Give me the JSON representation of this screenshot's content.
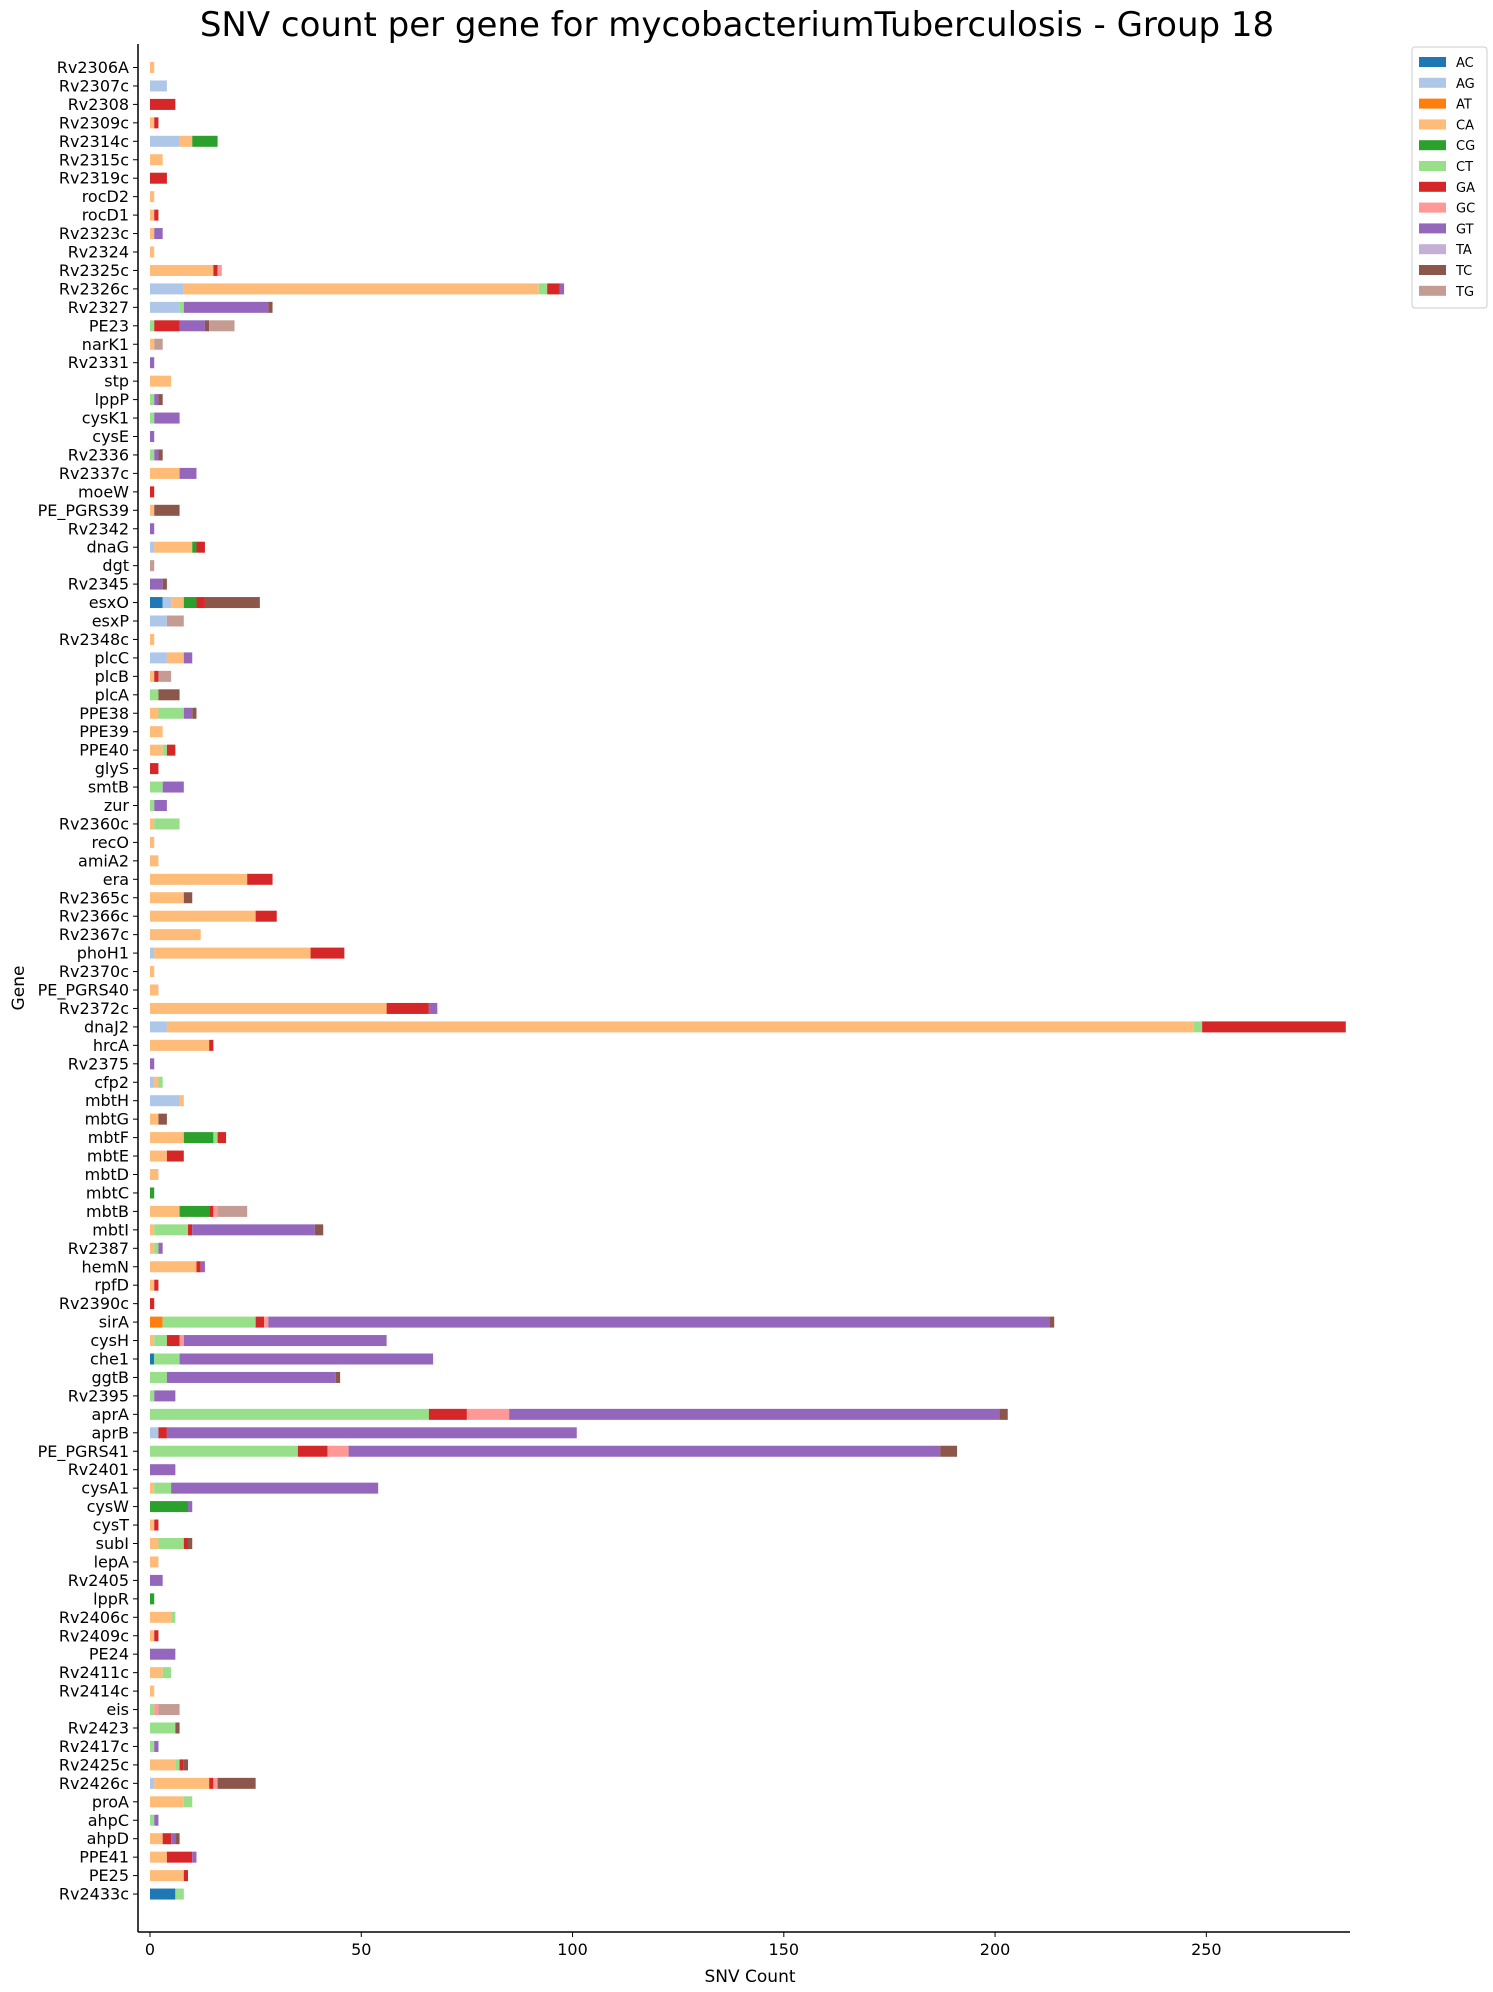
{
  "chart_data": {
    "type": "bar",
    "orientation": "horizontal",
    "stacked": true,
    "title": "SNV count per gene for mycobacteriumTuberculosis - Group 18",
    "xlabel": "SNV Count",
    "ylabel": "Gene",
    "xlim": [
      0,
      284
    ],
    "xticks": [
      0,
      50,
      100,
      150,
      200,
      250
    ],
    "grid": false,
    "legend_position": "top-right, outside plot",
    "categories": [
      "Rv2306A",
      "Rv2307c",
      "Rv2308",
      "Rv2309c",
      "Rv2314c",
      "Rv2315c",
      "Rv2319c",
      "rocD2",
      "rocD1",
      "Rv2323c",
      "Rv2324",
      "Rv2325c",
      "Rv2326c",
      "Rv2327",
      "PE23",
      "narK1",
      "Rv2331",
      "stp",
      "lppP",
      "cysK1",
      "cysE",
      "Rv2336",
      "Rv2337c",
      "moeW",
      "PE_PGRS39",
      "Rv2342",
      "dnaG",
      "dgt",
      "Rv2345",
      "esxO",
      "esxP",
      "Rv2348c",
      "plcC",
      "plcB",
      "plcA",
      "PPE38",
      "PPE39",
      "PPE40",
      "glyS",
      "smtB",
      "zur",
      "Rv2360c",
      "recO",
      "amiA2",
      "era",
      "Rv2365c",
      "Rv2366c",
      "Rv2367c",
      "phoH1",
      "Rv2370c",
      "PE_PGRS40",
      "Rv2372c",
      "dnaJ2",
      "hrcA",
      "Rv2375",
      "cfp2",
      "mbtH",
      "mbtG",
      "mbtF",
      "mbtE",
      "mbtD",
      "mbtC",
      "mbtB",
      "mbtI",
      "Rv2387",
      "hemN",
      "rpfD",
      "Rv2390c",
      "sirA",
      "cysH",
      "che1",
      "ggtB",
      "Rv2395",
      "aprA",
      "aprB",
      "PE_PGRS41",
      "Rv2401",
      "cysA1",
      "cysW",
      "cysT",
      "subI",
      "lepA",
      "Rv2405",
      "lppR",
      "Rv2406c",
      "Rv2409c",
      "PE24",
      "Rv2411c",
      "Rv2414c",
      "eis",
      "Rv2423",
      "Rv2417c",
      "Rv2425c",
      "Rv2426c",
      "proA",
      "ahpC",
      "ahpD",
      "PPE41",
      "PE25",
      "Rv2433c"
    ],
    "series": [
      {
        "name": "AC",
        "color": "#1f77b4",
        "values": [
          0,
          0,
          0,
          0,
          0,
          0,
          0,
          0,
          0,
          0,
          0,
          0,
          0,
          0,
          0,
          0,
          0,
          0,
          0,
          0,
          0,
          0,
          0,
          0,
          0,
          0,
          0,
          0,
          0,
          3,
          0,
          0,
          0,
          0,
          0,
          0,
          0,
          0,
          0,
          0,
          0,
          0,
          0,
          0,
          0,
          0,
          0,
          0,
          0,
          0,
          0,
          0,
          0,
          0,
          0,
          0,
          0,
          0,
          0,
          0,
          0,
          0,
          0,
          0,
          0,
          0,
          0,
          0,
          0,
          0,
          1,
          0,
          0,
          0,
          0,
          0,
          0,
          0,
          0,
          0,
          0,
          0,
          0,
          0,
          0,
          0,
          0,
          0,
          0,
          0,
          0,
          0,
          0,
          0,
          0,
          0,
          0,
          0,
          0,
          6
        ]
      },
      {
        "name": "AG",
        "color": "#aec7e8",
        "values": [
          0,
          4,
          0,
          0,
          7,
          0,
          0,
          0,
          0,
          0,
          0,
          0,
          8,
          7,
          0,
          0,
          0,
          0,
          0,
          0,
          0,
          0,
          0,
          0,
          0,
          0,
          1,
          0,
          0,
          2,
          4,
          0,
          4,
          0,
          0,
          0,
          0,
          0,
          0,
          0,
          0,
          0,
          0,
          0,
          0,
          0,
          0,
          0,
          1,
          0,
          0,
          0,
          4,
          0,
          0,
          1,
          7,
          0,
          0,
          0,
          0,
          0,
          0,
          0,
          0,
          0,
          0,
          0,
          0,
          0,
          0,
          0,
          0,
          0,
          2,
          0,
          0,
          0,
          0,
          0,
          0,
          0,
          0,
          0,
          0,
          0,
          0,
          0,
          0,
          0,
          0,
          0,
          0,
          1,
          0,
          0,
          0,
          0,
          0,
          0
        ]
      },
      {
        "name": "AT",
        "color": "#ff7f0e",
        "values": [
          0,
          0,
          0,
          0,
          0,
          0,
          0,
          0,
          0,
          0,
          0,
          0,
          0,
          0,
          0,
          0,
          0,
          0,
          0,
          0,
          0,
          0,
          0,
          0,
          0,
          0,
          0,
          0,
          0,
          0,
          0,
          0,
          0,
          0,
          0,
          0,
          0,
          0,
          0,
          0,
          0,
          0,
          0,
          0,
          0,
          0,
          0,
          0,
          0,
          0,
          0,
          0,
          0,
          0,
          0,
          0,
          0,
          0,
          0,
          0,
          0,
          0,
          0,
          0,
          0,
          0,
          0,
          0,
          3,
          0,
          0,
          0,
          0,
          0,
          0,
          0,
          0,
          0,
          0,
          0,
          0,
          0,
          0,
          0,
          0,
          0,
          0,
          0,
          0,
          0,
          0,
          0,
          0,
          0,
          0,
          0,
          0,
          0,
          0,
          0
        ]
      },
      {
        "name": "CA",
        "color": "#ffbb78",
        "values": [
          1,
          0,
          0,
          1,
          3,
          3,
          0,
          1,
          1,
          1,
          1,
          15,
          84,
          0,
          0,
          1,
          0,
          5,
          0,
          0,
          0,
          0,
          7,
          0,
          1,
          0,
          9,
          0,
          0,
          3,
          0,
          1,
          4,
          1,
          0,
          2,
          3,
          3,
          0,
          0,
          0,
          1,
          1,
          2,
          23,
          8,
          25,
          12,
          37,
          1,
          2,
          56,
          243,
          14,
          0,
          1,
          1,
          2,
          8,
          4,
          2,
          0,
          7,
          1,
          1,
          11,
          1,
          0,
          0,
          1,
          0,
          0,
          0,
          0,
          0,
          0,
          0,
          1,
          0,
          1,
          2,
          2,
          0,
          0,
          5,
          1,
          0,
          3,
          1,
          0,
          0,
          0,
          6,
          13,
          8,
          0,
          3,
          4,
          8,
          0
        ]
      },
      {
        "name": "CG",
        "color": "#2ca02c",
        "values": [
          0,
          0,
          0,
          0,
          6,
          0,
          0,
          0,
          0,
          0,
          0,
          0,
          0,
          0,
          0,
          0,
          0,
          0,
          0,
          0,
          0,
          0,
          0,
          0,
          0,
          0,
          1,
          0,
          0,
          3,
          0,
          0,
          0,
          0,
          0,
          0,
          0,
          0,
          0,
          0,
          0,
          0,
          0,
          0,
          0,
          0,
          0,
          0,
          0,
          0,
          0,
          0,
          0,
          0,
          0,
          0,
          0,
          0,
          7,
          0,
          0,
          1,
          7,
          0,
          0,
          0,
          0,
          0,
          0,
          0,
          0,
          0,
          0,
          0,
          0,
          0,
          0,
          0,
          9,
          0,
          0,
          0,
          0,
          1,
          0,
          0,
          0,
          0,
          0,
          0,
          0,
          0,
          0,
          0,
          0,
          0,
          0,
          0,
          0,
          0
        ]
      },
      {
        "name": "CT",
        "color": "#98df8a",
        "values": [
          0,
          0,
          0,
          0,
          0,
          0,
          0,
          0,
          0,
          0,
          0,
          0,
          2,
          1,
          1,
          0,
          0,
          0,
          1,
          1,
          0,
          1,
          0,
          0,
          0,
          0,
          0,
          0,
          0,
          0,
          0,
          0,
          0,
          0,
          2,
          6,
          0,
          1,
          0,
          3,
          1,
          6,
          0,
          0,
          0,
          0,
          0,
          0,
          0,
          0,
          0,
          0,
          2,
          0,
          0,
          1,
          0,
          0,
          1,
          0,
          0,
          0,
          0,
          8,
          1,
          0,
          0,
          0,
          22,
          3,
          6,
          4,
          1,
          66,
          0,
          35,
          0,
          4,
          0,
          0,
          6,
          0,
          0,
          0,
          1,
          0,
          0,
          2,
          0,
          1,
          6,
          1,
          1,
          0,
          2,
          1,
          0,
          0,
          0,
          2
        ]
      },
      {
        "name": "GA",
        "color": "#d62728",
        "values": [
          0,
          0,
          6,
          1,
          0,
          0,
          4,
          0,
          1,
          0,
          0,
          1,
          3,
          0,
          6,
          0,
          0,
          0,
          0,
          0,
          0,
          0,
          0,
          1,
          0,
          0,
          2,
          0,
          0,
          2,
          0,
          0,
          0,
          1,
          0,
          0,
          0,
          2,
          2,
          0,
          0,
          0,
          0,
          0,
          6,
          0,
          5,
          0,
          8,
          0,
          0,
          10,
          34,
          1,
          0,
          0,
          0,
          0,
          2,
          4,
          0,
          0,
          1,
          1,
          0,
          1,
          1,
          1,
          2,
          3,
          0,
          0,
          0,
          9,
          2,
          7,
          0,
          0,
          0,
          1,
          1,
          0,
          0,
          0,
          0,
          1,
          0,
          0,
          0,
          0,
          0,
          0,
          1,
          1,
          0,
          0,
          2,
          6,
          1,
          0
        ]
      },
      {
        "name": "GC",
        "color": "#ff9896",
        "values": [
          0,
          0,
          0,
          0,
          0,
          0,
          0,
          0,
          0,
          0,
          0,
          1,
          0,
          0,
          0,
          0,
          0,
          0,
          0,
          0,
          0,
          0,
          0,
          0,
          0,
          0,
          0,
          0,
          0,
          0,
          0,
          0,
          0,
          0,
          0,
          0,
          0,
          0,
          0,
          0,
          0,
          0,
          0,
          0,
          0,
          0,
          0,
          0,
          0,
          0,
          0,
          0,
          0,
          0,
          0,
          0,
          0,
          0,
          0,
          0,
          0,
          0,
          1,
          0,
          0,
          0,
          0,
          0,
          1,
          1,
          0,
          0,
          0,
          10,
          0,
          5,
          0,
          0,
          0,
          0,
          0,
          0,
          0,
          0,
          0,
          0,
          0,
          0,
          0,
          1,
          0,
          0,
          0,
          1,
          0,
          0,
          0,
          0,
          0,
          0
        ]
      },
      {
        "name": "GT",
        "color": "#9467bd",
        "values": [
          0,
          0,
          0,
          0,
          0,
          0,
          0,
          0,
          0,
          2,
          0,
          0,
          1,
          20,
          6,
          0,
          1,
          0,
          1,
          6,
          1,
          1,
          4,
          0,
          0,
          1,
          0,
          0,
          3,
          0,
          0,
          0,
          2,
          0,
          0,
          2,
          0,
          0,
          0,
          5,
          3,
          0,
          0,
          0,
          0,
          0,
          0,
          0,
          0,
          0,
          0,
          2,
          0,
          0,
          1,
          0,
          0,
          0,
          0,
          0,
          0,
          0,
          0,
          29,
          1,
          1,
          0,
          0,
          185,
          48,
          60,
          40,
          5,
          116,
          97,
          140,
          6,
          49,
          1,
          0,
          0,
          0,
          3,
          0,
          0,
          0,
          6,
          0,
          0,
          0,
          0,
          1,
          0,
          0,
          0,
          1,
          1,
          1,
          0,
          0
        ]
      },
      {
        "name": "TA",
        "color": "#c5b0d5",
        "values": [
          0,
          0,
          0,
          0,
          0,
          0,
          0,
          0,
          0,
          0,
          0,
          0,
          0,
          0,
          0,
          0,
          0,
          0,
          0,
          0,
          0,
          0,
          0,
          0,
          0,
          0,
          0,
          0,
          0,
          0,
          0,
          0,
          0,
          0,
          0,
          0,
          0,
          0,
          0,
          0,
          0,
          0,
          0,
          0,
          0,
          0,
          0,
          0,
          0,
          0,
          0,
          0,
          0,
          0,
          0,
          0,
          0,
          0,
          0,
          0,
          0,
          0,
          0,
          0,
          0,
          0,
          0,
          0,
          0,
          0,
          0,
          0,
          0,
          0,
          0,
          0,
          0,
          0,
          0,
          0,
          0,
          0,
          0,
          0,
          0,
          0,
          0,
          0,
          0,
          0,
          0,
          0,
          0,
          0,
          0,
          0,
          0,
          0,
          0,
          0
        ]
      },
      {
        "name": "TC",
        "color": "#8c564b",
        "values": [
          0,
          0,
          0,
          0,
          0,
          0,
          0,
          0,
          0,
          0,
          0,
          0,
          0,
          1,
          1,
          0,
          0,
          0,
          1,
          0,
          0,
          1,
          0,
          0,
          6,
          0,
          0,
          0,
          1,
          13,
          0,
          0,
          0,
          0,
          5,
          1,
          0,
          0,
          0,
          0,
          0,
          0,
          0,
          0,
          0,
          2,
          0,
          0,
          0,
          0,
          0,
          0,
          0,
          0,
          0,
          0,
          0,
          2,
          0,
          0,
          0,
          0,
          0,
          2,
          0,
          0,
          0,
          0,
          1,
          0,
          0,
          1,
          0,
          2,
          0,
          4,
          0,
          0,
          0,
          0,
          1,
          0,
          0,
          0,
          0,
          0,
          0,
          0,
          0,
          0,
          1,
          0,
          1,
          9,
          0,
          0,
          1,
          0,
          0,
          0
        ]
      },
      {
        "name": "TG",
        "color": "#c49c94",
        "values": [
          0,
          0,
          0,
          0,
          0,
          0,
          0,
          0,
          0,
          0,
          0,
          0,
          0,
          0,
          6,
          2,
          0,
          0,
          0,
          0,
          0,
          0,
          0,
          0,
          0,
          0,
          0,
          1,
          0,
          0,
          4,
          0,
          0,
          3,
          0,
          0,
          0,
          0,
          0,
          0,
          0,
          0,
          0,
          0,
          0,
          0,
          0,
          0,
          0,
          0,
          0,
          0,
          0,
          0,
          0,
          0,
          0,
          0,
          0,
          0,
          0,
          0,
          7,
          0,
          0,
          0,
          0,
          0,
          0,
          0,
          0,
          0,
          0,
          0,
          0,
          0,
          0,
          0,
          0,
          0,
          0,
          0,
          0,
          0,
          0,
          0,
          0,
          0,
          0,
          5,
          0,
          0,
          0,
          0,
          0,
          0,
          0,
          0,
          0,
          0
        ]
      }
    ]
  }
}
